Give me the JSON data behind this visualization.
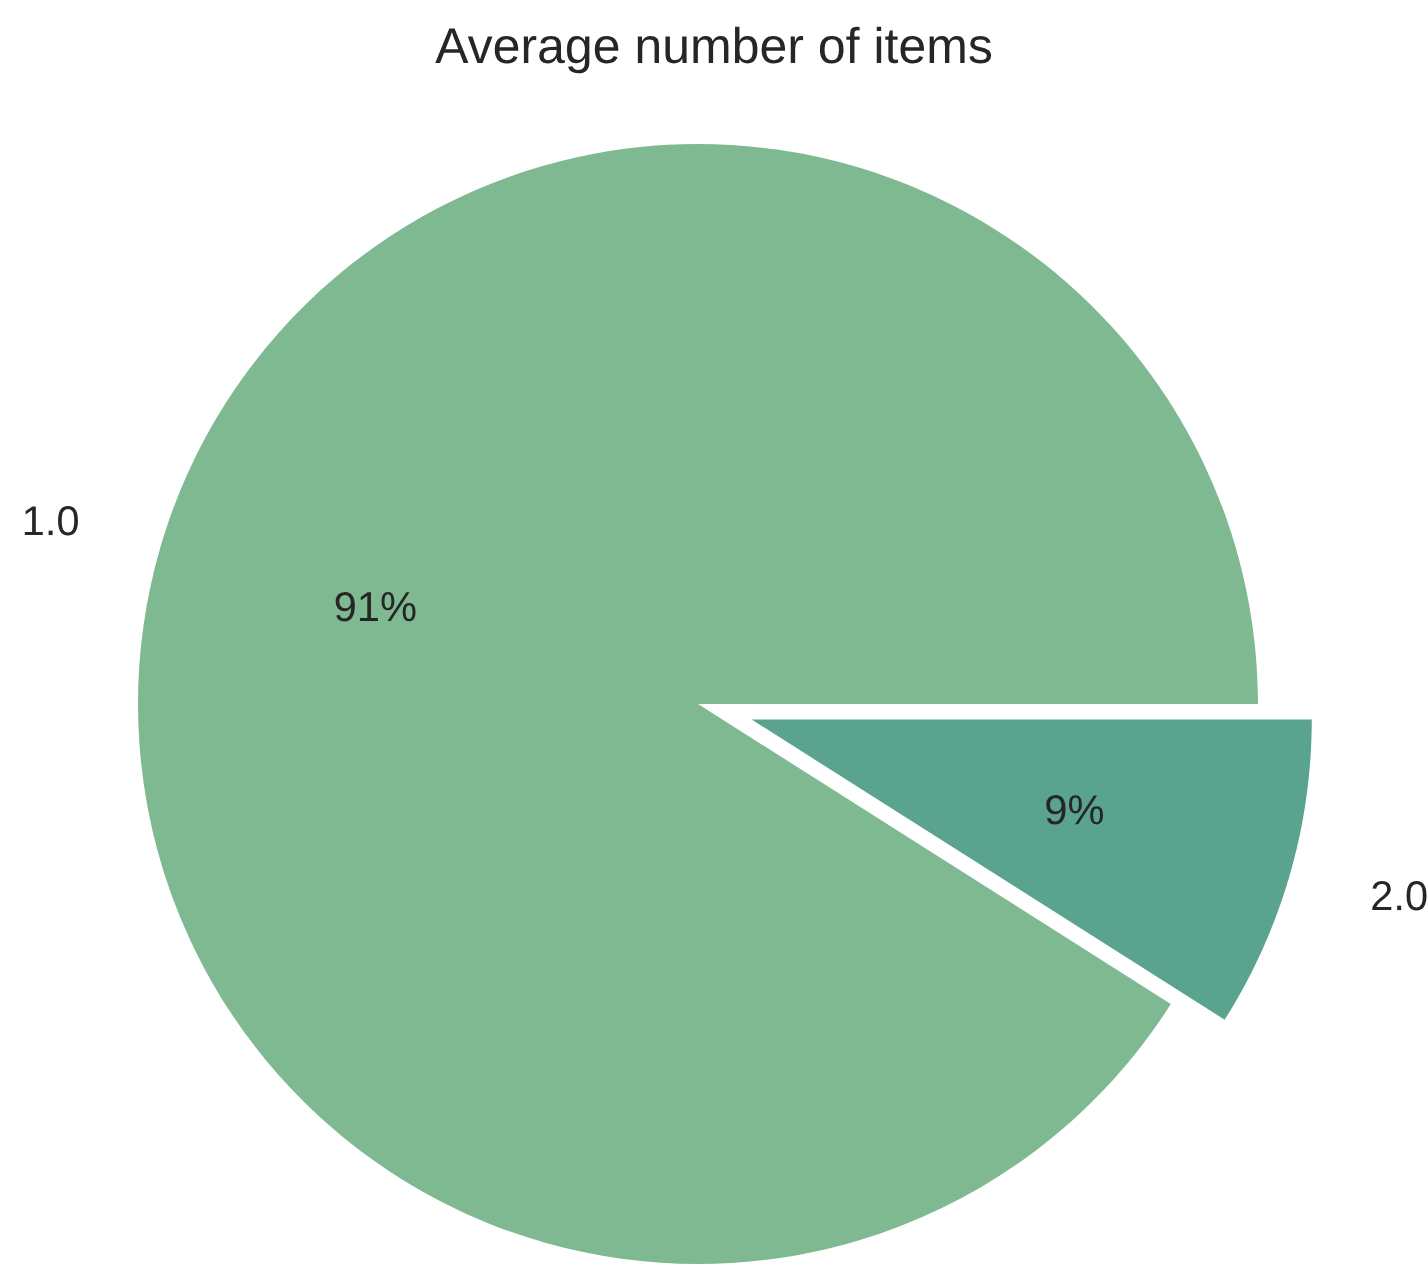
{
  "chart_data": {
    "type": "pie",
    "title": "Average number of items",
    "categories": [
      "1.0",
      "2.0"
    ],
    "values": [
      91,
      9
    ],
    "colors": [
      "#7fb991",
      "#5aa38e"
    ],
    "value_labels": [
      "91%",
      "9%"
    ],
    "legend": false
  }
}
